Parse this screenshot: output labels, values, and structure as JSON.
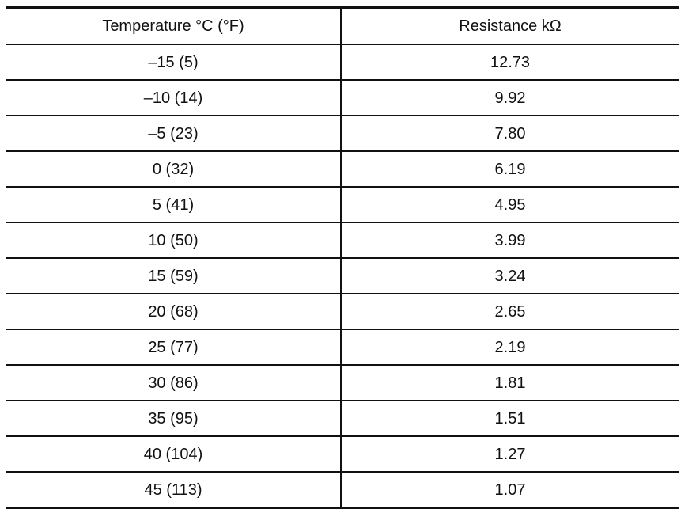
{
  "table": {
    "headers": {
      "temperature": "Temperature °C (°F)",
      "resistance": "Resistance kΩ"
    },
    "rows": [
      {
        "temperature": "–15 (5)",
        "resistance": "12.73"
      },
      {
        "temperature": "–10 (14)",
        "resistance": "9.92"
      },
      {
        "temperature": "–5 (23)",
        "resistance": "7.80"
      },
      {
        "temperature": "0 (32)",
        "resistance": "6.19"
      },
      {
        "temperature": "5 (41)",
        "resistance": "4.95"
      },
      {
        "temperature": "10 (50)",
        "resistance": "3.99"
      },
      {
        "temperature": "15 (59)",
        "resistance": "3.24"
      },
      {
        "temperature": "20 (68)",
        "resistance": "2.65"
      },
      {
        "temperature": "25 (77)",
        "resistance": "2.19"
      },
      {
        "temperature": "30 (86)",
        "resistance": "1.81"
      },
      {
        "temperature": "35 (95)",
        "resistance": "1.51"
      },
      {
        "temperature": "40 (104)",
        "resistance": "1.27"
      },
      {
        "temperature": "45 (113)",
        "resistance": "1.07"
      }
    ]
  }
}
